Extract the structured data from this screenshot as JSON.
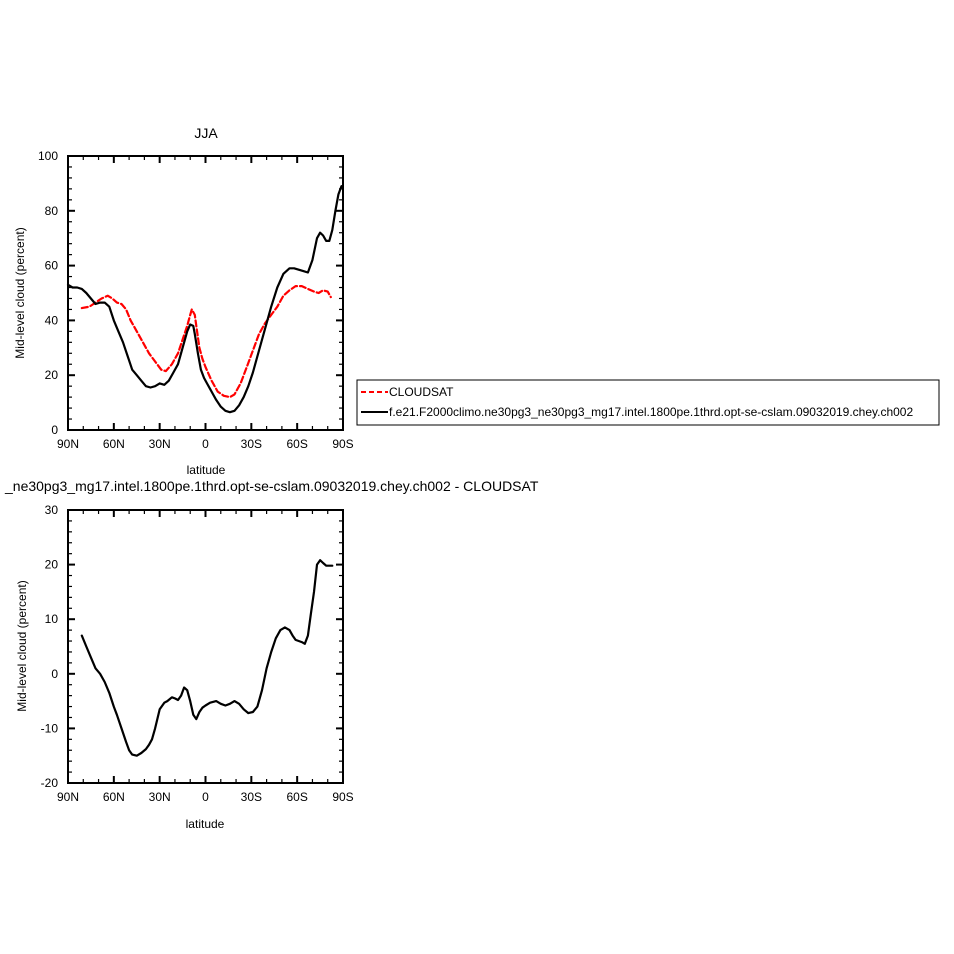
{
  "chart_data": [
    {
      "type": "line",
      "title": "JJA",
      "xlabel": "latitude",
      "ylabel": "Mid-level cloud (percent)",
      "xlim": [
        -90,
        90
      ],
      "ylim": [
        0,
        100
      ],
      "x_major_ticks": [
        -90,
        -60,
        -30,
        0,
        30,
        60,
        90
      ],
      "x_tick_labels": [
        "90N",
        "60N",
        "30N",
        "0",
        "30S",
        "60S",
        "90S"
      ],
      "y_major_ticks": [
        0,
        20,
        40,
        60,
        80,
        100
      ],
      "y_tick_labels": [
        "0",
        "20",
        "40",
        "60",
        "80",
        "100"
      ],
      "legend_placement": "right",
      "series": [
        {
          "name": "CLOUDSAT",
          "color": "#ff0000",
          "dash": true,
          "x": [
            -81,
            -76,
            -72,
            -68,
            -64,
            -61,
            -58,
            -55,
            -52,
            -49,
            -45,
            -41,
            -37,
            -33,
            -29,
            -26,
            -22,
            -18,
            -15,
            -12,
            -10,
            -9,
            -7,
            -6,
            -4,
            -2,
            0,
            4,
            8,
            12,
            16,
            19,
            23,
            27,
            31,
            35,
            39,
            43,
            47,
            51,
            55,
            59,
            63,
            67,
            71,
            74,
            77,
            80,
            82
          ],
          "y": [
            44.5,
            45,
            46.5,
            48,
            49,
            48,
            46.5,
            46,
            44,
            40,
            36,
            32,
            28,
            25,
            22,
            21.5,
            24,
            28,
            33,
            38,
            42,
            44,
            42,
            38,
            30,
            26,
            23,
            18,
            14,
            12.5,
            12,
            13,
            17,
            23,
            29,
            35,
            39,
            42,
            45,
            49,
            51,
            52.5,
            52.5,
            51.5,
            50.5,
            50,
            51,
            50.5,
            48.5
          ]
        },
        {
          "name": "f.e21.F2000climo.ne30pg3_ne30pg3_mg17.intel.1800pe.1thrd.opt-se-cslam.09032019.chey.ch002",
          "color": "#000000",
          "dash": false,
          "x": [
            -90,
            -87,
            -84,
            -81,
            -78,
            -75,
            -72,
            -69,
            -66,
            -63,
            -60,
            -57,
            -54,
            -51,
            -48,
            -45,
            -42,
            -39,
            -36,
            -33,
            -30,
            -27,
            -24,
            -21,
            -18,
            -15,
            -12,
            -10,
            -8,
            -7,
            -5,
            -3,
            -1,
            1,
            3,
            5,
            7,
            10,
            13,
            16,
            19,
            22,
            25,
            28,
            31,
            35,
            39,
            43,
            47,
            51,
            55,
            58,
            61,
            64,
            67,
            70,
            73,
            75,
            77,
            79,
            81,
            83,
            85,
            87,
            89
          ],
          "y": [
            53,
            52,
            52,
            51.5,
            50,
            48,
            46,
            46.5,
            46.5,
            45,
            40,
            36,
            32,
            27,
            22,
            20,
            18,
            16,
            15.5,
            16,
            17,
            16.5,
            18,
            21,
            24,
            30,
            36,
            38.5,
            38,
            35,
            28,
            22,
            19,
            17,
            15,
            13,
            11,
            8.5,
            7,
            6.5,
            7,
            9,
            12,
            16,
            21,
            29,
            37,
            45,
            52,
            57,
            59,
            59,
            58.5,
            58,
            57.5,
            62,
            70,
            72,
            71,
            69,
            69,
            73,
            80,
            86,
            89
          ]
        }
      ]
    },
    {
      "type": "line",
      "title": "_ne30pg3_mg17.intel.1800pe.1thrd.opt-se-cslam.09032019.chey.ch002 - CLOUDSAT",
      "xlabel": "latitude",
      "ylabel": "Mid-level cloud (percent)",
      "xlim": [
        -90,
        90
      ],
      "ylim": [
        -20,
        30
      ],
      "x_major_ticks": [
        -90,
        -60,
        -30,
        0,
        30,
        60,
        90
      ],
      "x_tick_labels": [
        "90N",
        "60N",
        "30N",
        "0",
        "30S",
        "60S",
        "90S"
      ],
      "y_major_ticks": [
        -20,
        -10,
        0,
        10,
        20,
        30
      ],
      "y_tick_labels": [
        "-20",
        "-10",
        "0",
        "10",
        "20",
        "30"
      ],
      "series": [
        {
          "color": "#000000",
          "dash": false,
          "x": [
            -81,
            -78,
            -75,
            -72,
            -69,
            -66,
            -63,
            -60,
            -58,
            -55,
            -52,
            -50,
            -48,
            -45,
            -42,
            -39,
            -37,
            -35,
            -33,
            -30,
            -27,
            -25,
            -22,
            -20,
            -18,
            -16,
            -14,
            -12,
            -10,
            -8,
            -6,
            -4,
            -2,
            0,
            3,
            7,
            10,
            13,
            16,
            19,
            22,
            25,
            28,
            31,
            34,
            37,
            40,
            43,
            46,
            49,
            52,
            55,
            57,
            59,
            61,
            63,
            65,
            67,
            69,
            71,
            73,
            75,
            77,
            79,
            81,
            83
          ],
          "y": [
            7,
            5,
            3,
            1,
            0,
            -1.5,
            -3.5,
            -6,
            -7.5,
            -10,
            -12.5,
            -14,
            -14.8,
            -15,
            -14.5,
            -13.8,
            -13,
            -12,
            -10,
            -6.5,
            -5.3,
            -5,
            -4.3,
            -4.5,
            -4.8,
            -4,
            -2.5,
            -3,
            -5,
            -7.5,
            -8.3,
            -7,
            -6.2,
            -5.8,
            -5.3,
            -5,
            -5.5,
            -5.8,
            -5.5,
            -5,
            -5.5,
            -6.5,
            -7.2,
            -7,
            -6,
            -3,
            1,
            4,
            6.5,
            8,
            8.5,
            8,
            7,
            6.2,
            6,
            5.8,
            5.5,
            7,
            11,
            15,
            20,
            20.8,
            20.3,
            19.8,
            19.8,
            19.8
          ]
        }
      ]
    }
  ]
}
